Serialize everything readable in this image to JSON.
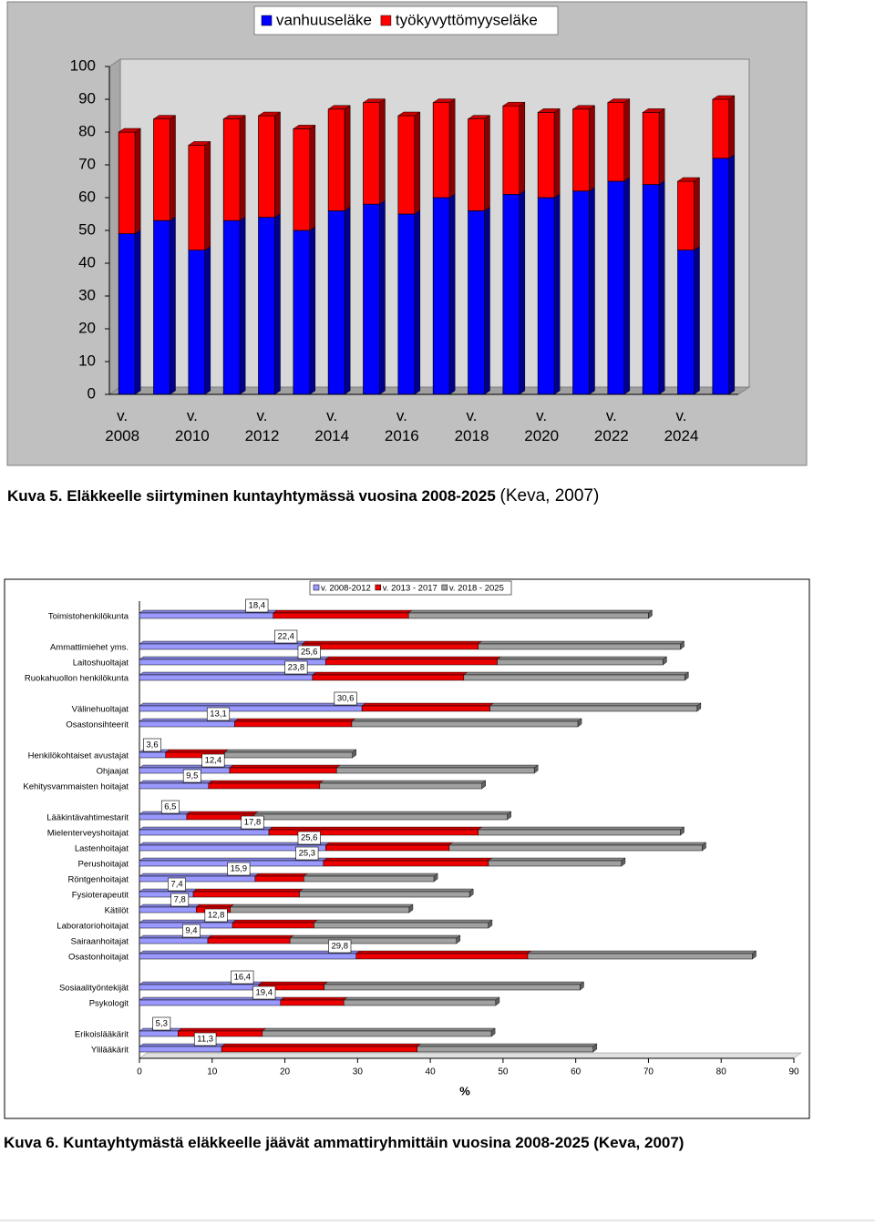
{
  "chart_data": [
    {
      "type": "bar",
      "stacked": true,
      "categories": [
        "v. 2008",
        null,
        "v. 2010",
        null,
        "v. 2012",
        null,
        "v. 2014",
        null,
        "v. 2016",
        null,
        "v. 2018",
        null,
        "v. 2020",
        null,
        "v. 2022",
        null,
        "v. 2024",
        null
      ],
      "series": [
        {
          "name": "vanhuuseläke",
          "color": "#0000ff",
          "values": [
            49,
            53,
            44,
            53,
            54,
            50,
            56,
            58,
            55,
            60,
            56,
            61,
            60,
            62,
            65,
            64,
            44,
            72
          ]
        },
        {
          "name": "työkyvyttömyyseläke",
          "color": "#ff0000",
          "values": [
            31,
            31,
            32,
            31,
            31,
            31,
            31,
            31,
            30,
            29,
            28,
            27,
            26,
            25,
            24,
            22,
            21,
            18
          ]
        }
      ],
      "ylim": [
        0,
        100
      ],
      "yticks": [
        0,
        10,
        20,
        30,
        40,
        50,
        60,
        70,
        80,
        90,
        100
      ],
      "legend": "top"
    },
    {
      "type": "barh",
      "stacked": true,
      "categories": [
        "Toimistohenkilökunta",
        "Ammattimiehet yms.",
        "Laitoshuoltajat",
        "Ruokahuollon henkilökunta",
        "Välinehuoltajat",
        "Osastonsihteerit",
        "Henkilökohtaiset avustajat",
        "Ohjaajat",
        "Kehitysvammaisten hoitajat",
        "Lääkintävahtimestarit",
        "Mielenterveyshoitajat",
        "Lastenhoitajat",
        "Perushoitajat",
        "Röntgenhoitajat",
        "Fysioterapeutit",
        "Kätilöt",
        "Laboratoriohoitajat",
        "Sairaanhoitajat",
        "Osastonhoitajat",
        "Sosiaalityöntekijät",
        "Psykologit",
        "Erikoislääkärit",
        "Ylilääkärit"
      ],
      "series": [
        {
          "name": "v. 2008-2012",
          "color": "#9999ff",
          "values": [
            18.4,
            22.4,
            25.6,
            23.8,
            30.6,
            13.1,
            3.6,
            12.4,
            9.5,
            6.5,
            17.8,
            25.6,
            25.3,
            15.9,
            7.4,
            7.8,
            12.8,
            9.4,
            29.8,
            16.4,
            19.4,
            5.3,
            11.3
          ],
          "value_labels": [
            "18,4",
            "22,4",
            "25,6",
            "23,8",
            "30,6",
            "13,1",
            "3,6",
            "12,4",
            "9,5",
            "6,5",
            "17,8",
            "25,6",
            "25,3",
            "15,9",
            "7,4",
            "7,8",
            "12,8",
            "9,4",
            "29,8",
            "16,4",
            "19,4",
            "5,3",
            "11,3"
          ]
        },
        {
          "name": "v. 2013 - 2017",
          "color": "#ee0000",
          "values": [
            18.6,
            24.2,
            23.6,
            20.8,
            17.6,
            16.1,
            8.1,
            14.7,
            15.3,
            9.3,
            28.8,
            17,
            22.7,
            6.7,
            14.6,
            4.7,
            11.2,
            11.3,
            23.6,
            9,
            8.7,
            11.6,
            26.9
          ]
        },
        {
          "name": "v. 2018 - 2025",
          "color": "#a0a0a0",
          "values": [
            33,
            27.8,
            22.8,
            30.4,
            28.5,
            31.1,
            17.6,
            27.2,
            22.3,
            34.8,
            27.8,
            34.8,
            18.3,
            17.9,
            23.4,
            24.6,
            24,
            22.9,
            30.9,
            35.2,
            20.9,
            31.5,
            24.2
          ]
        }
      ],
      "xlabel": "%",
      "xlim": [
        0,
        90
      ],
      "xticks": [
        0,
        10,
        20,
        30,
        40,
        50,
        60,
        70,
        80,
        90
      ],
      "legend": "top"
    }
  ],
  "captions": [
    {
      "bold": "Kuva 5. Eläkkeelle siirtyminen kuntayhtymässä vuosina 2008-2025",
      "normal": "(Keva, 2007)"
    },
    {
      "bold": "Kuva 6. Kuntayhtymästä eläkkeelle jäävät ammattiryhmittäin vuosina 2008-2025 (Keva, 2007)"
    }
  ]
}
